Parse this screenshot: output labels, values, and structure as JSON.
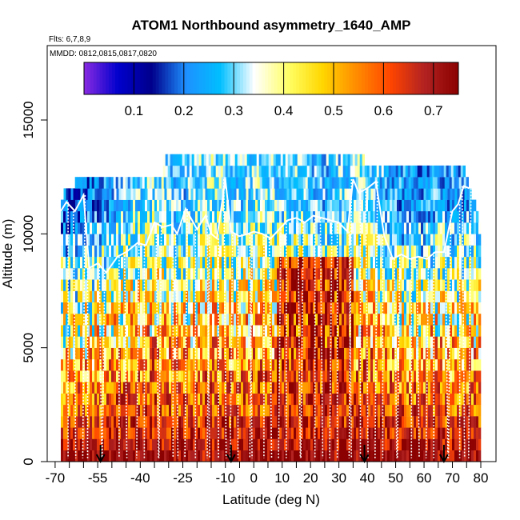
{
  "chart_data": {
    "type": "heatmap",
    "title": "ATOM1 Northbound asymmetry_1640_AMP",
    "subtitle_flights": "Flts: 6,7,8,9",
    "subtitle_dates": "MMDD: 0812,0815,0817,0820",
    "xlabel": "Latitude (deg N)",
    "ylabel": "Altitude (m)",
    "xlim": [
      -70,
      85
    ],
    "ylim": [
      0,
      17500
    ],
    "x_ticks": [
      {
        "value": -70,
        "label": "-70"
      },
      {
        "value": -55,
        "label": "-55"
      },
      {
        "value": -40,
        "label": "-40"
      },
      {
        "value": -25,
        "label": "-25"
      },
      {
        "value": -10,
        "label": "-10"
      },
      {
        "value": 0,
        "label": "0"
      },
      {
        "value": 10,
        "label": "10"
      },
      {
        "value": 20,
        "label": "20"
      },
      {
        "value": 30,
        "label": "30"
      },
      {
        "value": 40,
        "label": "40"
      },
      {
        "value": 50,
        "label": "50"
      },
      {
        "value": 60,
        "label": "60"
      },
      {
        "value": 70,
        "label": "70"
      },
      {
        "value": 80,
        "label": "80"
      }
    ],
    "y_ticks": [
      {
        "value": 0,
        "label": "0"
      },
      {
        "value": 5000,
        "label": "5000"
      },
      {
        "value": 10000,
        "label": "10000"
      },
      {
        "value": 15000,
        "label": "15000"
      }
    ],
    "colorbar": {
      "range": [
        0.0,
        0.75
      ],
      "ticks": [
        {
          "value": 0.1,
          "label": "0.1"
        },
        {
          "value": 0.2,
          "label": "0.2"
        },
        {
          "value": 0.3,
          "label": "0.3"
        },
        {
          "value": 0.4,
          "label": "0.4"
        },
        {
          "value": 0.5,
          "label": "0.5"
        },
        {
          "value": 0.6,
          "label": "0.6"
        },
        {
          "value": 0.7,
          "label": "0.7"
        }
      ],
      "colors": [
        "#8a2be2",
        "#0000cd",
        "#00008b",
        "#1e90ff",
        "#00bfff",
        "#ffffff",
        "#ffff66",
        "#ffd700",
        "#ff8c00",
        "#ff4500",
        "#b22222",
        "#8b0000"
      ]
    },
    "altitude_layers_m": [
      0,
      500,
      1000,
      1500,
      2000,
      2500,
      3000,
      3500,
      4000,
      4500,
      5000,
      5500,
      6000,
      6500,
      7000,
      7500,
      8000,
      8500,
      9000,
      9500,
      10000,
      10500,
      11000,
      11500,
      12000,
      12500,
      13000
    ],
    "layer_extent_deg": [
      [
        -68,
        80
      ],
      [
        -68,
        80
      ],
      [
        -68,
        80
      ],
      [
        -68,
        80
      ],
      [
        -68,
        80
      ],
      [
        -68,
        80
      ],
      [
        -68,
        80
      ],
      [
        -68,
        80
      ],
      [
        -68,
        80
      ],
      [
        -68,
        80
      ],
      [
        -68,
        80
      ],
      [
        -68,
        80
      ],
      [
        -68,
        80
      ],
      [
        -68,
        80
      ],
      [
        -68,
        80
      ],
      [
        -68,
        80
      ],
      [
        -68,
        80
      ],
      [
        -68,
        80
      ],
      [
        -68,
        80
      ],
      [
        -68,
        80
      ],
      [
        -68,
        80
      ],
      [
        -68,
        79
      ],
      [
        -68,
        78
      ],
      [
        -67,
        76
      ],
      [
        -63,
        75
      ],
      [
        -32,
        74
      ],
      [
        -32,
        39
      ]
    ],
    "asymmetry_profile": {
      "latitude_deg": [
        -70,
        -62,
        -55,
        -50,
        -45,
        -40,
        -35,
        -30,
        -25,
        -20,
        -15,
        -10,
        -5,
        0,
        5,
        10,
        15,
        20,
        25,
        30,
        35,
        40,
        45,
        50,
        55,
        60,
        65,
        70,
        75,
        80
      ],
      "surface": [
        0.7,
        0.72,
        0.72,
        0.74,
        0.72,
        0.72,
        0.73,
        0.72,
        0.72,
        0.7,
        0.72,
        0.73,
        0.72,
        0.72,
        0.74,
        0.73,
        0.74,
        0.75,
        0.73,
        0.72,
        0.74,
        0.74,
        0.73,
        0.74,
        0.74,
        0.74,
        0.73,
        0.7,
        0.72,
        0.72
      ],
      "upper": [
        0.2,
        0.18,
        0.22,
        0.25,
        0.28,
        0.3,
        0.32,
        0.28,
        0.26,
        0.3,
        0.32,
        0.3,
        0.28,
        0.32,
        0.3,
        0.28,
        0.3,
        0.27,
        0.26,
        0.28,
        0.3,
        0.32,
        0.26,
        0.24,
        0.22,
        0.22,
        0.25,
        0.24,
        0.24,
        0.26
      ]
    },
    "flight_track_cloud_top_m": {
      "latitude_deg": [
        -68,
        -66,
        -63,
        -60,
        -58,
        -55,
        -52,
        -48,
        -45,
        -41,
        -38,
        -35,
        -32,
        -29,
        -27,
        -24,
        -20,
        -17,
        -15,
        -13,
        -10,
        -8,
        -5,
        -2,
        0,
        3,
        6,
        9,
        12,
        15,
        18,
        21,
        24,
        27,
        30,
        33,
        35,
        37,
        40,
        43,
        46,
        49,
        52,
        55,
        58,
        61,
        64,
        67,
        70,
        72,
        74,
        76
      ],
      "altitude_m": [
        11000,
        11400,
        11000,
        11700,
        8500,
        8700,
        8300,
        9000,
        9200,
        9600,
        9500,
        10500,
        10300,
        10400,
        10000,
        11100,
        10200,
        10800,
        10000,
        9800,
        12400,
        10100,
        9900,
        10000,
        10100,
        10000,
        9800,
        10200,
        10600,
        10700,
        10500,
        10800,
        10700,
        10600,
        10500,
        10100,
        12400,
        11800,
        12000,
        12300,
        9900,
        8900,
        9100,
        8900,
        9000,
        8900,
        9200,
        9200,
        11000,
        11300,
        12100,
        12000
      ]
    },
    "arrows_lat_deg": [
      -54,
      -8,
      39,
      67
    ]
  }
}
